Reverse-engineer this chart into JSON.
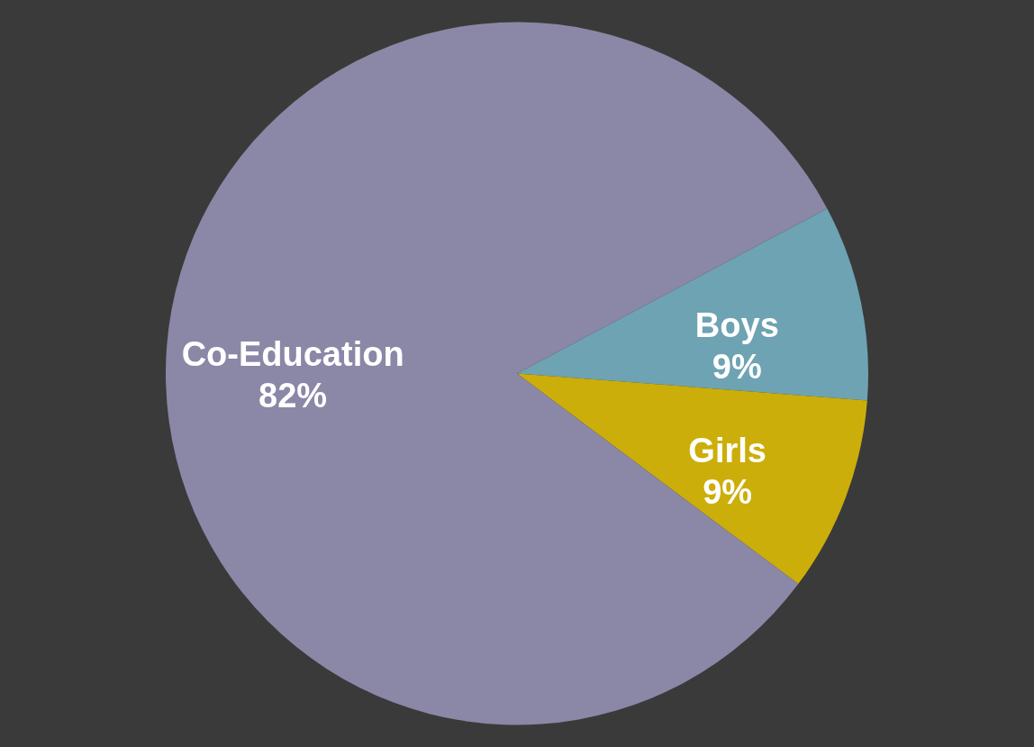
{
  "chart_data": {
    "type": "pie",
    "categories": [
      "Boys",
      "Girls",
      "Co-Education"
    ],
    "values": [
      9,
      9,
      82
    ],
    "colors": [
      "#6ea3b3",
      "#ccae0a",
      "#8b87a6"
    ],
    "value_labels": [
      "9%",
      "9%",
      "82%"
    ]
  }
}
